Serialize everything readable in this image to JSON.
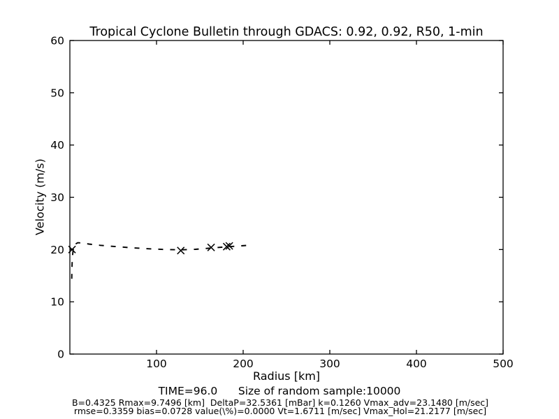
{
  "figure": {
    "background": "#ffffff",
    "foreground": "#000000"
  },
  "chart_data": {
    "type": "line",
    "title": "Tropical Cyclone Bulletin through GDACS: 0.92, 0.92, R50, 1-min",
    "xlabel": "Radius [km]",
    "ylabel": "Velocity (m/s)",
    "xlim": [
      0,
      500
    ],
    "ylim": [
      0,
      60
    ],
    "xticks": [
      100,
      200,
      300,
      400,
      500
    ],
    "yticks": [
      0,
      10,
      20,
      30,
      40,
      50,
      60
    ],
    "grid": false,
    "legend": "none",
    "series": [
      {
        "name": "holland-profile-fit",
        "style": "dashed",
        "color": "#000000",
        "points": [
          [
            2.2,
            14.4
          ],
          [
            2.4,
            16.5
          ],
          [
            2.8,
            18.5
          ],
          [
            4,
            20.2
          ],
          [
            6,
            21.0
          ],
          [
            9,
            21.3
          ],
          [
            14,
            21.25
          ],
          [
            22,
            21.05
          ],
          [
            35,
            20.8
          ],
          [
            50,
            20.6
          ],
          [
            70,
            20.35
          ],
          [
            90,
            20.15
          ],
          [
            110,
            20.0
          ],
          [
            130,
            19.95
          ],
          [
            145,
            20.05
          ],
          [
            160,
            20.25
          ],
          [
            175,
            20.45
          ],
          [
            192,
            20.65
          ],
          [
            209,
            20.85
          ]
        ]
      },
      {
        "name": "bulletin-observations",
        "style": "x-markers",
        "color": "#000000",
        "points": [
          [
            2.5,
            20.0
          ],
          [
            128,
            19.8
          ],
          [
            163,
            20.4
          ],
          [
            181,
            20.55
          ],
          [
            184,
            20.7
          ]
        ]
      }
    ],
    "annotations": {
      "line1": "TIME=96.0      Size of random sample:10000",
      "line2": "B=0.4325 Rmax=9.7496 [km]  DeltaP=32.5361 [mBar] k=0.1260 Vmax_adv=23.1480 [m/sec]",
      "line3": "rmse=0.3359 bias=0.0728 value(\\%)=0.0000 Vt=1.6711 [m/sec] Vmax_Hol=21.2177 [m/sec]"
    }
  }
}
